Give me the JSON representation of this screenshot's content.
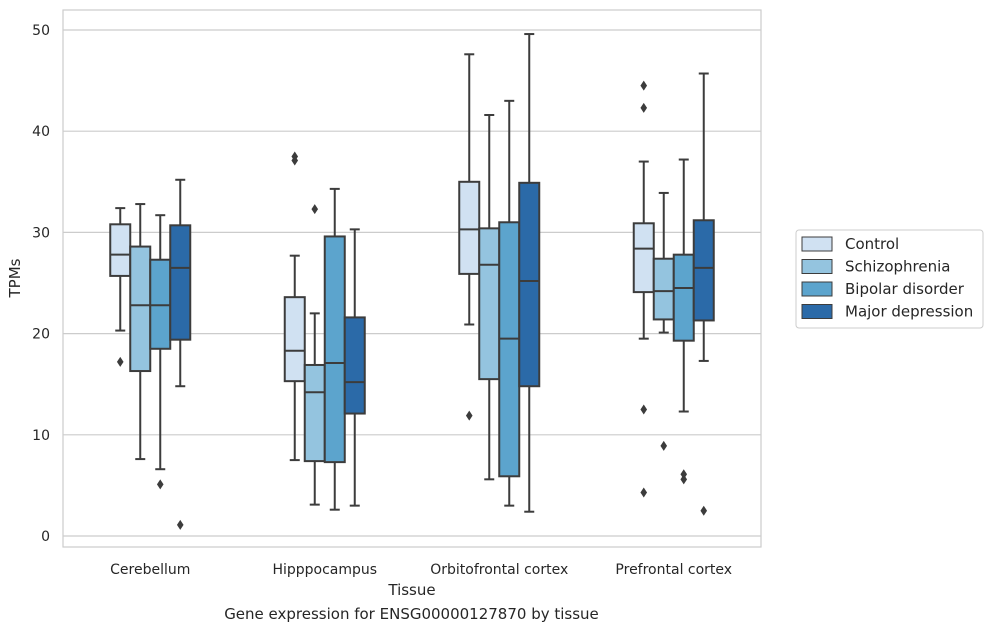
{
  "chart_data": {
    "type": "box",
    "title": "",
    "caption": "Gene expression for ENSG00000127870 by tissue",
    "xlabel": "Tissue",
    "ylabel": "TPMs",
    "ylim": [
      -1,
      52
    ],
    "yticks": [
      0,
      10,
      20,
      30,
      40,
      50
    ],
    "grid": "horizontal",
    "legend_position": "right",
    "categories": [
      "Cerebellum",
      "Hipppocampus",
      "Orbitofrontal cortex",
      "Prefrontal cortex"
    ],
    "series": [
      {
        "name": "Control",
        "color": "#d0e1f2",
        "boxes": [
          {
            "whislo": 20.3,
            "q1": 25.7,
            "med": 27.8,
            "q3": 30.8,
            "whishi": 32.4,
            "fliers": [
              17.2
            ]
          },
          {
            "whislo": 7.5,
            "q1": 15.3,
            "med": 18.3,
            "q3": 23.6,
            "whishi": 27.7,
            "fliers": [
              37.1,
              37.5
            ]
          },
          {
            "whislo": 20.9,
            "q1": 25.9,
            "med": 30.3,
            "q3": 35.0,
            "whishi": 47.6,
            "fliers": [
              11.9
            ]
          },
          {
            "whislo": 19.5,
            "q1": 24.1,
            "med": 28.4,
            "q3": 30.9,
            "whishi": 37.0,
            "fliers": [
              42.3,
              44.5,
              12.5,
              4.3
            ]
          }
        ]
      },
      {
        "name": "Schizophrenia",
        "color": "#94c4df",
        "boxes": [
          {
            "whislo": 7.6,
            "q1": 16.3,
            "med": 22.8,
            "q3": 28.6,
            "whishi": 32.8,
            "fliers": []
          },
          {
            "whislo": 3.1,
            "q1": 7.4,
            "med": 14.2,
            "q3": 16.9,
            "whishi": 22.0,
            "fliers": [
              32.3
            ]
          },
          {
            "whislo": 5.6,
            "q1": 15.5,
            "med": 26.8,
            "q3": 30.4,
            "whishi": 41.6,
            "fliers": []
          },
          {
            "whislo": 20.1,
            "q1": 21.4,
            "med": 24.2,
            "q3": 27.4,
            "whishi": 33.9,
            "fliers": [
              8.9
            ]
          }
        ]
      },
      {
        "name": "Bipolar disorder",
        "color": "#5ca4cd",
        "boxes": [
          {
            "whislo": 6.6,
            "q1": 18.5,
            "med": 22.8,
            "q3": 27.3,
            "whishi": 31.7,
            "fliers": [
              5.1
            ]
          },
          {
            "whislo": 2.6,
            "q1": 7.3,
            "med": 17.1,
            "q3": 29.6,
            "whishi": 34.3,
            "fliers": []
          },
          {
            "whislo": 3.0,
            "q1": 5.9,
            "med": 19.5,
            "q3": 31.0,
            "whishi": 43.0,
            "fliers": []
          },
          {
            "whislo": 12.3,
            "q1": 19.3,
            "med": 24.5,
            "q3": 27.8,
            "whishi": 37.2,
            "fliers": [
              6.1,
              5.6
            ]
          }
        ]
      },
      {
        "name": "Major depression",
        "color": "#2b6aa8",
        "boxes": [
          {
            "whislo": 14.8,
            "q1": 19.4,
            "med": 26.5,
            "q3": 30.7,
            "whishi": 35.2,
            "fliers": [
              1.1
            ]
          },
          {
            "whislo": 3.0,
            "q1": 12.1,
            "med": 15.2,
            "q3": 21.6,
            "whishi": 30.3,
            "fliers": []
          },
          {
            "whislo": 2.4,
            "q1": 14.8,
            "med": 25.2,
            "q3": 34.9,
            "whishi": 49.6,
            "fliers": []
          },
          {
            "whislo": 17.3,
            "q1": 21.3,
            "med": 26.5,
            "q3": 31.2,
            "whishi": 45.7,
            "fliers": [
              2.5
            ]
          }
        ]
      }
    ]
  }
}
